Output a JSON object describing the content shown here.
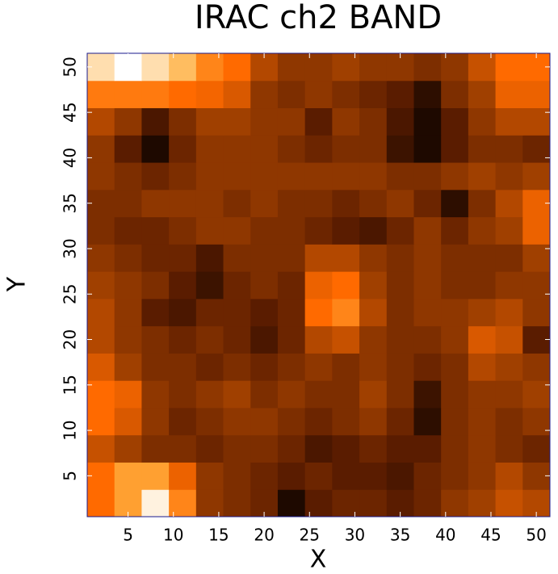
{
  "chart_data": {
    "type": "heatmap",
    "title": "IRAC ch2 BAND",
    "xlabel": "X",
    "ylabel": "Y",
    "xlim": [
      0.5,
      51.5
    ],
    "ylim": [
      0.5,
      51.5
    ],
    "xticks": [
      5,
      10,
      15,
      20,
      25,
      30,
      35,
      40,
      45,
      50
    ],
    "yticks": [
      5,
      10,
      15,
      20,
      25,
      30,
      35,
      40,
      45,
      50
    ],
    "xbins": [
      0.5,
      3.5,
      6.5,
      9.5,
      12.5,
      15.5,
      18.5,
      21.5,
      24.5,
      27.5,
      30.5,
      33.5,
      36.5,
      39.5,
      42.5,
      45.5,
      48.5,
      51.5
    ],
    "ybins": [
      0.5,
      3.5,
      6.5,
      9.5,
      12.5,
      15.5,
      18.5,
      21.5,
      24.5,
      27.5,
      30.5,
      33.5,
      36.5,
      39.5,
      42.5,
      45.5,
      48.5,
      51.5
    ],
    "zlim": [
      0,
      1
    ],
    "colormap": {
      "stops": [
        0,
        0.3,
        0.5,
        0.75,
        0.88,
        1
      ],
      "colors": [
        "#000000",
        "#5a1c00",
        "#a04000",
        "#ff6a00",
        "#ffb040",
        "#ffffff"
      ]
    },
    "z": [
      [
        0.75,
        0.85,
        0.98,
        0.8,
        0.45,
        0.4,
        0.35,
        0.1,
        0.3,
        0.35,
        0.35,
        0.3,
        0.35,
        0.45,
        0.5,
        0.6,
        0.55
      ],
      [
        0.75,
        0.85,
        0.85,
        0.7,
        0.45,
        0.4,
        0.35,
        0.3,
        0.35,
        0.3,
        0.3,
        0.25,
        0.35,
        0.4,
        0.45,
        0.55,
        0.45
      ],
      [
        0.6,
        0.5,
        0.4,
        0.4,
        0.35,
        0.4,
        0.4,
        0.35,
        0.25,
        0.3,
        0.35,
        0.3,
        0.3,
        0.4,
        0.45,
        0.4,
        0.35
      ],
      [
        0.75,
        0.65,
        0.45,
        0.35,
        0.4,
        0.45,
        0.45,
        0.4,
        0.35,
        0.4,
        0.45,
        0.35,
        0.15,
        0.4,
        0.45,
        0.4,
        0.45
      ],
      [
        0.75,
        0.7,
        0.45,
        0.4,
        0.45,
        0.5,
        0.4,
        0.45,
        0.4,
        0.4,
        0.5,
        0.4,
        0.2,
        0.4,
        0.45,
        0.45,
        0.5
      ],
      [
        0.65,
        0.5,
        0.4,
        0.4,
        0.35,
        0.4,
        0.35,
        0.4,
        0.45,
        0.4,
        0.45,
        0.4,
        0.35,
        0.4,
        0.55,
        0.5,
        0.45
      ],
      [
        0.55,
        0.45,
        0.4,
        0.35,
        0.4,
        0.35,
        0.25,
        0.35,
        0.55,
        0.6,
        0.45,
        0.4,
        0.4,
        0.45,
        0.65,
        0.6,
        0.3
      ],
      [
        0.55,
        0.45,
        0.3,
        0.25,
        0.35,
        0.35,
        0.3,
        0.35,
        0.75,
        0.8,
        0.55,
        0.4,
        0.45,
        0.45,
        0.5,
        0.55,
        0.45
      ],
      [
        0.5,
        0.45,
        0.4,
        0.3,
        0.2,
        0.35,
        0.4,
        0.35,
        0.7,
        0.75,
        0.5,
        0.4,
        0.45,
        0.4,
        0.4,
        0.45,
        0.45
      ],
      [
        0.45,
        0.4,
        0.35,
        0.35,
        0.25,
        0.4,
        0.4,
        0.4,
        0.55,
        0.55,
        0.45,
        0.4,
        0.45,
        0.4,
        0.4,
        0.4,
        0.5
      ],
      [
        0.4,
        0.35,
        0.35,
        0.4,
        0.45,
        0.45,
        0.4,
        0.4,
        0.35,
        0.3,
        0.25,
        0.35,
        0.45,
        0.35,
        0.45,
        0.5,
        0.7
      ],
      [
        0.4,
        0.4,
        0.45,
        0.45,
        0.45,
        0.4,
        0.45,
        0.4,
        0.4,
        0.35,
        0.4,
        0.45,
        0.35,
        0.15,
        0.4,
        0.55,
        0.7
      ],
      [
        0.45,
        0.4,
        0.35,
        0.4,
        0.45,
        0.45,
        0.45,
        0.45,
        0.45,
        0.45,
        0.45,
        0.4,
        0.4,
        0.45,
        0.5,
        0.45,
        0.5
      ],
      [
        0.45,
        0.3,
        0.1,
        0.35,
        0.45,
        0.45,
        0.45,
        0.4,
        0.35,
        0.4,
        0.4,
        0.2,
        0.1,
        0.3,
        0.4,
        0.4,
        0.35
      ],
      [
        0.55,
        0.45,
        0.25,
        0.4,
        0.5,
        0.5,
        0.45,
        0.45,
        0.3,
        0.45,
        0.4,
        0.25,
        0.1,
        0.3,
        0.45,
        0.55,
        0.55
      ],
      [
        0.78,
        0.78,
        0.78,
        0.75,
        0.72,
        0.65,
        0.45,
        0.4,
        0.45,
        0.4,
        0.35,
        0.3,
        0.15,
        0.4,
        0.5,
        0.7,
        0.7
      ],
      [
        0.95,
        1.0,
        0.95,
        0.9,
        0.8,
        0.75,
        0.55,
        0.45,
        0.45,
        0.5,
        0.45,
        0.45,
        0.4,
        0.45,
        0.6,
        0.75,
        0.75
      ]
    ]
  }
}
